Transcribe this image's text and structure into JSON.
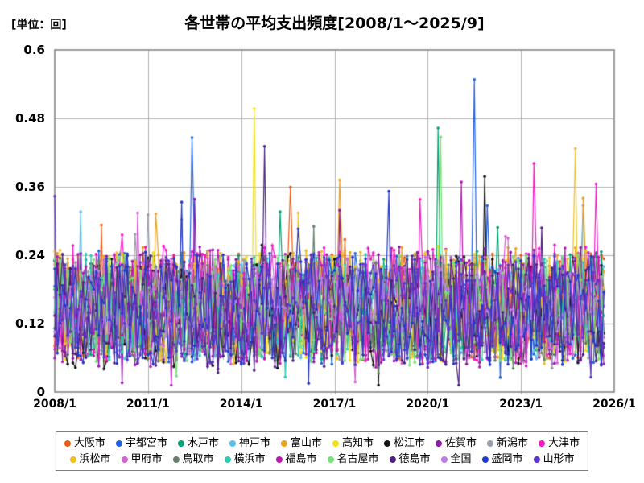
{
  "chart_data": {
    "type": "line",
    "title": "各世帯の平均支出頻度[2008/1～2025/9]",
    "unit_label": "[単位：回]",
    "x_start": "2008/1",
    "x_end": "2025/9",
    "months": 213,
    "x_axis_total_months": 216,
    "x_tick_labels": [
      "2008/1",
      "2011/1",
      "2014/1",
      "2017/1",
      "2020/1",
      "2023/1",
      "2026/1"
    ],
    "x_tick_months": [
      0,
      36,
      72,
      108,
      144,
      180,
      216
    ],
    "y_tick_labels": [
      "0.6",
      "0.48",
      "0.36",
      "0.24",
      "0.12",
      "0"
    ],
    "y_tick_values": [
      0.6,
      0.48,
      0.36,
      0.24,
      0.12,
      0
    ],
    "ylim": [
      0,
      0.6
    ],
    "grid": true,
    "legend_position": "bottom",
    "marker": "circle",
    "typical_band": [
      0.04,
      0.28
    ],
    "series": [
      {
        "name": "大阪市",
        "color": "#ED5A16",
        "seed": 101,
        "base": 0.15,
        "amp": 0.19
      },
      {
        "name": "宇都宮市",
        "color": "#2163DF",
        "seed": 102,
        "base": 0.148,
        "amp": 0.2
      },
      {
        "name": "水戸市",
        "color": "#00A375",
        "seed": 103,
        "base": 0.152,
        "amp": 0.19
      },
      {
        "name": "神戸市",
        "color": "#58BEF2",
        "seed": 104,
        "base": 0.143,
        "amp": 0.18
      },
      {
        "name": "富山市",
        "color": "#EFA120",
        "seed": 105,
        "base": 0.155,
        "amp": 0.2
      },
      {
        "name": "高知市",
        "color": "#F2E114",
        "seed": 106,
        "base": 0.147,
        "amp": 0.19
      },
      {
        "name": "松江市",
        "color": "#141414",
        "seed": 107,
        "base": 0.14,
        "amp": 0.2
      },
      {
        "name": "佐賀市",
        "color": "#8E18A8",
        "seed": 108,
        "base": 0.15,
        "amp": 0.21
      },
      {
        "name": "新潟市",
        "color": "#9AA0A8",
        "seed": 109,
        "base": 0.146,
        "amp": 0.18
      },
      {
        "name": "大津市",
        "color": "#F218C6",
        "seed": 110,
        "base": 0.153,
        "amp": 0.21
      },
      {
        "name": "浜松市",
        "color": "#F0C020",
        "seed": 111,
        "base": 0.149,
        "amp": 0.2
      },
      {
        "name": "甲府市",
        "color": "#D95FD5",
        "seed": 112,
        "base": 0.144,
        "amp": 0.19
      },
      {
        "name": "鳥取市",
        "color": "#66806C",
        "seed": 113,
        "base": 0.141,
        "amp": 0.18
      },
      {
        "name": "横浜市",
        "color": "#28CCAE",
        "seed": 114,
        "base": 0.151,
        "amp": 0.19
      },
      {
        "name": "福島市",
        "color": "#B818B4",
        "seed": 115,
        "base": 0.148,
        "amp": 0.21
      },
      {
        "name": "名古屋市",
        "color": "#75E275",
        "seed": 116,
        "base": 0.146,
        "amp": 0.19
      },
      {
        "name": "徳島市",
        "color": "#4B2182",
        "seed": 117,
        "base": 0.142,
        "amp": 0.2
      },
      {
        "name": "全国",
        "color": "#BC7CEC",
        "seed": 118,
        "base": 0.158,
        "amp": 0.12
      },
      {
        "name": "盛岡市",
        "color": "#2138CE",
        "seed": 119,
        "base": 0.147,
        "amp": 0.2
      },
      {
        "name": "山形市",
        "color": "#5D34CC",
        "seed": 120,
        "base": 0.145,
        "amp": 0.19
      }
    ],
    "spikes": [
      {
        "series": 1,
        "month": 162,
        "value": 0.548
      },
      {
        "series": 5,
        "month": 77,
        "value": 0.497
      },
      {
        "series": 2,
        "month": 148,
        "value": 0.463
      },
      {
        "series": 15,
        "month": 149,
        "value": 0.447
      },
      {
        "series": 1,
        "month": 53,
        "value": 0.446
      },
      {
        "series": 16,
        "month": 81,
        "value": 0.431
      },
      {
        "series": 10,
        "month": 201,
        "value": 0.427
      },
      {
        "series": 9,
        "month": 185,
        "value": 0.401
      },
      {
        "series": 6,
        "month": 166,
        "value": 0.378
      },
      {
        "series": 4,
        "month": 110,
        "value": 0.372
      },
      {
        "series": 4,
        "month": 204,
        "value": 0.34
      },
      {
        "series": 9,
        "month": 209,
        "value": 0.365
      }
    ],
    "colors": {
      "plot_border": "#7F7F7F",
      "gridline": "#B3B3B3",
      "text": "#000000",
      "background": "#FFFFFF"
    }
  }
}
